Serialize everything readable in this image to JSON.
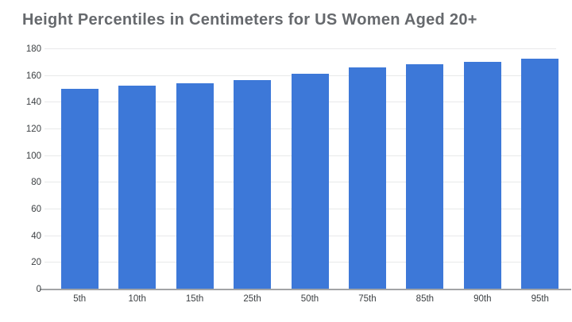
{
  "colors": {
    "bar": "#3d78d8",
    "title": "#66696d",
    "axis_label": "#3c4043",
    "gridline": "#e8e9ea",
    "axis_line": "#a2a4a6",
    "background": "#ffffff"
  },
  "chart_data": {
    "type": "bar",
    "title": "Height Percentiles in Centimeters for US Women Aged 20+",
    "categories": [
      "5th",
      "10th",
      "15th",
      "25th",
      "50th",
      "75th",
      "85th",
      "90th",
      "95th"
    ],
    "values": [
      150,
      152,
      154,
      156,
      161,
      165.5,
      168,
      170,
      172.5
    ],
    "xlabel": "",
    "ylabel": "",
    "ylim": [
      0,
      180
    ],
    "yticks": [
      0,
      20,
      40,
      60,
      80,
      100,
      120,
      140,
      160,
      180
    ],
    "grid": true,
    "legend": "none"
  }
}
